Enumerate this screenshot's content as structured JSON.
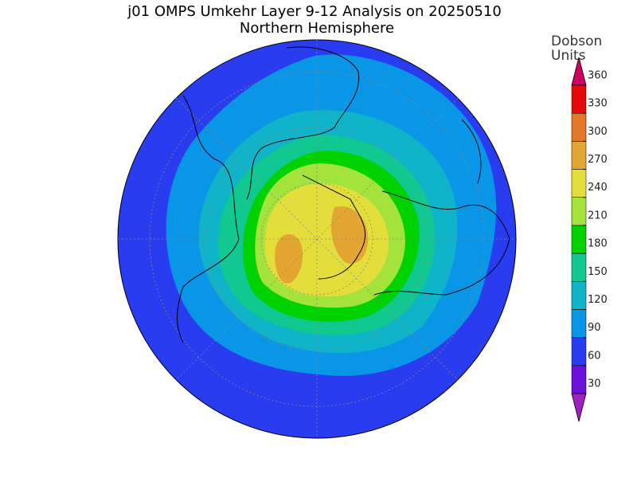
{
  "title": "j01 OMPS Umkehr Layer 9-12 Analysis on 20250510",
  "subtitle": "Northern Hemisphere",
  "colorbar": {
    "label": [
      "Dobson",
      "Units"
    ],
    "levels": [
      30,
      60,
      90,
      120,
      150,
      180,
      210,
      240,
      270,
      300,
      330,
      360
    ],
    "colors": [
      "#6a10d8",
      "#2a3cf0",
      "#0a96e6",
      "#10b4c8",
      "#10c890",
      "#00d200",
      "#a4e23c",
      "#e4de3a",
      "#e4a632",
      "#e4762a",
      "#e40a0a"
    ],
    "under_color": "#a020c0",
    "over_color": "#d00060"
  }
}
